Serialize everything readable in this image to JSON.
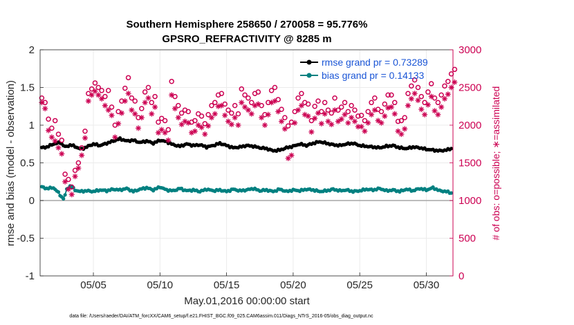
{
  "chart_data": {
    "type": "line",
    "title": "Southern Hemisphere 258650 / 270058 = 95.776%",
    "subtitle": "GPSRO_REFRACTIVITY @ 8285 m",
    "xlabel": "May.01,2016 00:00:00 start",
    "ylabel": "rmse and bias (model - observation)",
    "ylabel_right": "# of obs: o=possible; ∗=assimilated",
    "footnote": "data file: /Users/raeder/DAI/ATM_forcXX/CAM6_setup/f.e21.FHIST_BGC.f09_025.CAM6assim.011/Diags_NTrS_2016-05/obs_diag_output.nc",
    "xlim": [
      1,
      32
    ],
    "ylim": [
      -1,
      2
    ],
    "ylim_right": [
      0,
      3000
    ],
    "x_tick_labels": [
      "05/05",
      "05/10",
      "05/15",
      "05/20",
      "05/25",
      "05/30"
    ],
    "x_tick_values": [
      5,
      10,
      15,
      20,
      25,
      30
    ],
    "y_tick_labels": [
      "-1",
      "-0.5",
      "0",
      "0.5",
      "1",
      "1.5",
      "2"
    ],
    "y_tick_values": [
      -1,
      -0.5,
      0,
      0.5,
      1,
      1.5,
      2
    ],
    "y_right_tick_labels": [
      "0",
      "500",
      "1000",
      "1500",
      "2000",
      "2500",
      "3000"
    ],
    "y_right_tick_values": [
      0,
      500,
      1000,
      1500,
      2000,
      2500,
      3000
    ],
    "grid": true,
    "legend_position": "top-right",
    "colors": {
      "rmse": "#000000",
      "bias": "#008080",
      "counts": "#cc0052",
      "zero_line": "#a6a6a6",
      "grid": "#ebebeb",
      "legend_text": "#1a55d6"
    },
    "series": [
      {
        "name": "rmse grand pr = 0.73289",
        "axis": "left",
        "marker": "filled-circle",
        "x_start": 1.125,
        "x_step": 0.125,
        "y_control": [
          [
            1.125,
            0.7
          ],
          [
            1.5,
            0.71
          ],
          [
            2.0,
            0.75
          ],
          [
            2.5,
            0.77
          ],
          [
            2.9,
            0.71
          ],
          [
            3.3,
            0.74
          ],
          [
            3.7,
            0.71
          ],
          [
            4.1,
            0.68
          ],
          [
            4.6,
            0.72
          ],
          [
            5.0,
            0.75
          ],
          [
            5.5,
            0.73
          ],
          [
            6.0,
            0.76
          ],
          [
            6.5,
            0.79
          ],
          [
            7.0,
            0.82
          ],
          [
            7.5,
            0.79
          ],
          [
            8.0,
            0.8
          ],
          [
            8.5,
            0.77
          ],
          [
            9.0,
            0.79
          ],
          [
            9.5,
            0.76
          ],
          [
            10.0,
            0.8
          ],
          [
            10.5,
            0.78
          ],
          [
            11.0,
            0.74
          ],
          [
            11.5,
            0.72
          ],
          [
            12.0,
            0.75
          ],
          [
            12.5,
            0.73
          ],
          [
            13.0,
            0.74
          ],
          [
            13.5,
            0.71
          ],
          [
            14.0,
            0.73
          ],
          [
            14.5,
            0.76
          ],
          [
            15.0,
            0.73
          ],
          [
            15.5,
            0.7
          ],
          [
            16.0,
            0.71
          ],
          [
            16.5,
            0.73
          ],
          [
            17.0,
            0.72
          ],
          [
            17.5,
            0.7
          ],
          [
            18.0,
            0.69
          ],
          [
            18.5,
            0.66
          ],
          [
            19.0,
            0.67
          ],
          [
            19.5,
            0.7
          ],
          [
            20.0,
            0.72
          ],
          [
            20.5,
            0.75
          ],
          [
            21.0,
            0.73
          ],
          [
            21.5,
            0.76
          ],
          [
            22.0,
            0.78
          ],
          [
            22.5,
            0.76
          ],
          [
            23.0,
            0.74
          ],
          [
            23.5,
            0.73
          ],
          [
            24.0,
            0.75
          ],
          [
            24.5,
            0.76
          ],
          [
            25.0,
            0.73
          ],
          [
            25.5,
            0.72
          ],
          [
            26.0,
            0.71
          ],
          [
            26.5,
            0.7
          ],
          [
            27.0,
            0.72
          ],
          [
            27.5,
            0.73
          ],
          [
            28.0,
            0.7
          ],
          [
            28.5,
            0.69
          ],
          [
            29.0,
            0.71
          ],
          [
            29.5,
            0.7
          ],
          [
            30.0,
            0.68
          ],
          [
            30.5,
            0.67
          ],
          [
            31.0,
            0.66
          ],
          [
            31.5,
            0.67
          ],
          [
            31.875,
            0.69
          ]
        ]
      },
      {
        "name": "bias grand pr = 0.14133",
        "axis": "left",
        "marker": "filled-circle",
        "x_start": 1.125,
        "x_step": 0.125,
        "y_control": [
          [
            1.125,
            0.18
          ],
          [
            1.5,
            0.16
          ],
          [
            2.0,
            0.17
          ],
          [
            2.3,
            0.12
          ],
          [
            2.6,
            0.05
          ],
          [
            2.8,
            0.02
          ],
          [
            3.0,
            0.15
          ],
          [
            3.3,
            0.2
          ],
          [
            3.6,
            0.14
          ],
          [
            4.0,
            0.12
          ],
          [
            4.5,
            0.13
          ],
          [
            5.0,
            0.12
          ],
          [
            5.5,
            0.14
          ],
          [
            6.0,
            0.13
          ],
          [
            6.5,
            0.15
          ],
          [
            7.0,
            0.14
          ],
          [
            7.5,
            0.16
          ],
          [
            8.0,
            0.12
          ],
          [
            8.5,
            0.15
          ],
          [
            9.0,
            0.17
          ],
          [
            9.5,
            0.14
          ],
          [
            10.0,
            0.18
          ],
          [
            10.5,
            0.14
          ],
          [
            11.0,
            0.13
          ],
          [
            11.5,
            0.16
          ],
          [
            12.0,
            0.13
          ],
          [
            12.5,
            0.14
          ],
          [
            13.0,
            0.12
          ],
          [
            13.5,
            0.15
          ],
          [
            14.0,
            0.13
          ],
          [
            14.5,
            0.14
          ],
          [
            15.0,
            0.12
          ],
          [
            15.5,
            0.15
          ],
          [
            16.0,
            0.13
          ],
          [
            16.5,
            0.14
          ],
          [
            17.0,
            0.16
          ],
          [
            17.5,
            0.13
          ],
          [
            18.0,
            0.14
          ],
          [
            18.5,
            0.12
          ],
          [
            19.0,
            0.15
          ],
          [
            19.5,
            0.12
          ],
          [
            20.0,
            0.14
          ],
          [
            20.5,
            0.13
          ],
          [
            21.0,
            0.15
          ],
          [
            21.5,
            0.14
          ],
          [
            22.0,
            0.12
          ],
          [
            22.5,
            0.13
          ],
          [
            23.0,
            0.15
          ],
          [
            23.5,
            0.13
          ],
          [
            24.0,
            0.14
          ],
          [
            24.5,
            0.12
          ],
          [
            25.0,
            0.13
          ],
          [
            25.5,
            0.15
          ],
          [
            26.0,
            0.14
          ],
          [
            26.5,
            0.16
          ],
          [
            27.0,
            0.13
          ],
          [
            27.5,
            0.14
          ],
          [
            28.0,
            0.12
          ],
          [
            28.5,
            0.15
          ],
          [
            29.0,
            0.13
          ],
          [
            29.5,
            0.16
          ],
          [
            30.0,
            0.14
          ],
          [
            30.5,
            0.17
          ],
          [
            31.0,
            0.13
          ],
          [
            31.5,
            0.12
          ],
          [
            31.875,
            0.1
          ]
        ]
      },
      {
        "name": "possible",
        "axis": "right",
        "marker": "open-circle",
        "x_start": 1.125,
        "x_step": 0.25,
        "values": [
          2360,
          2300,
          2080,
          1960,
          2060,
          1880,
          1800,
          1350,
          1280,
          1180,
          1400,
          1500,
          1700,
          1920,
          2420,
          2480,
          2560,
          2500,
          2460,
          2380,
          2460,
          2240,
          2000,
          2180,
          2320,
          2490,
          2630,
          2360,
          2320,
          2100,
          2220,
          2440,
          2500,
          2300,
          2380,
          2040,
          2090,
          2060,
          1940,
          2580,
          2380,
          2260,
          2160,
          2200,
          2180,
          2040,
          2060,
          2150,
          2120,
          2020,
          2140,
          2260,
          2300,
          2400,
          2420,
          2280,
          2200,
          2160,
          2260,
          2150,
          2480,
          2400,
          2360,
          2300,
          2420,
          2440,
          2260,
          2140,
          2300,
          2460,
          2500,
          2340,
          2210,
          2100,
          1990,
          2040,
          2180,
          2360,
          2420,
          2300,
          2280,
          2060,
          2250,
          2320,
          2180,
          2300,
          2200,
          2160,
          2360,
          2200,
          2240,
          2300,
          2180,
          2260,
          2200,
          2120,
          2130,
          2060,
          2180,
          2300,
          2360,
          2210,
          2180,
          2280,
          2400,
          2400,
          2300,
          2050,
          2060,
          2100,
          2420,
          2520,
          2600,
          2500,
          2380,
          2300,
          2440,
          2550,
          2360,
          2300,
          2400,
          2520,
          2580,
          2680,
          2740
        ]
      },
      {
        "name": "assimilated",
        "axis": "right",
        "marker": "asterisk",
        "x_start": 1.125,
        "x_step": 0.25,
        "values": [
          2300,
          2220,
          1930,
          1840,
          1790,
          1700,
          1620,
          1250,
          1150,
          1080,
          1320,
          1430,
          1600,
          1830,
          2320,
          2400,
          2450,
          2400,
          2350,
          2260,
          2200,
          2130,
          1840,
          2020,
          2160,
          2320,
          2420,
          2200,
          2150,
          1960,
          2100,
          2300,
          2360,
          2150,
          2240,
          1900,
          1940,
          1900,
          1800,
          2400,
          2220,
          2100,
          2010,
          2050,
          2030,
          1900,
          1920,
          2000,
          1970,
          1880,
          1990,
          2100,
          2150,
          2250,
          2260,
          2130,
          2050,
          2010,
          2100,
          2000,
          2300,
          2240,
          2200,
          2150,
          2260,
          2280,
          2100,
          2000,
          2140,
          2300,
          2320,
          2180,
          2050,
          1950,
          1560,
          1600,
          2030,
          2200,
          2260,
          2140,
          2120,
          1910,
          2090,
          2160,
          2020,
          2150,
          2050,
          2010,
          2200,
          2050,
          2080,
          2140,
          2030,
          2100,
          2050,
          1980,
          1980,
          1920,
          2030,
          2140,
          2200,
          2060,
          2030,
          2120,
          2230,
          2240,
          2150,
          1920,
          1880,
          1950,
          2260,
          2350,
          2420,
          2330,
          2210,
          2140,
          2270,
          2380,
          2190,
          2140,
          2240,
          2350,
          2410,
          2500,
          2570
        ]
      }
    ]
  }
}
